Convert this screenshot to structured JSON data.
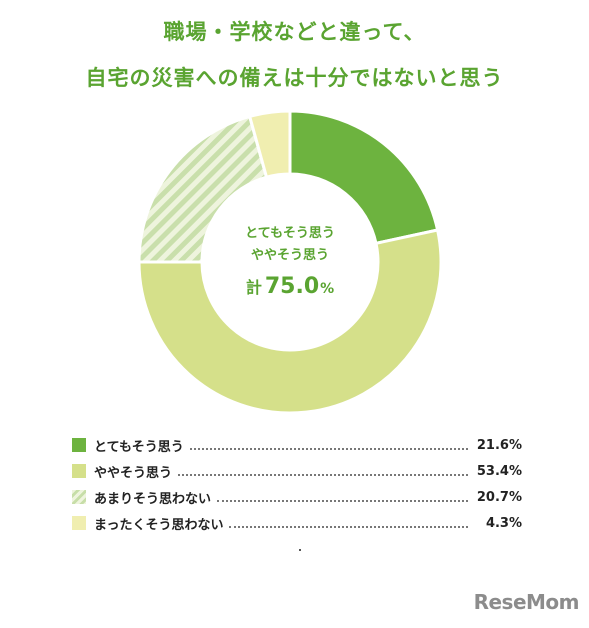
{
  "title_lines": [
    "職場・学校などと違って、",
    "自宅の災害への備えは十分ではないと思う"
  ],
  "center": {
    "line1": "とてもそう思う",
    "line2": "ややそう思う",
    "total_prefix": "計",
    "total_value": "75.0",
    "total_unit": "%"
  },
  "chart_data": {
    "type": "pie",
    "donut": true,
    "categories": [
      "とてもそう思う",
      "ややそう思う",
      "あまりそう思わない",
      "まったくそう思わない"
    ],
    "values": [
      21.6,
      53.4,
      20.7,
      4.3
    ],
    "value_labels": [
      "21.6%",
      "53.4%",
      "20.7%",
      "4.3%"
    ],
    "colors": [
      "#6db33f",
      "#d5e08a",
      "#d9e9c2",
      "#f0eeb0"
    ],
    "patterns": [
      "solid",
      "solid",
      "striped",
      "solid"
    ]
  },
  "logo": {
    "text": "ReseMom"
  }
}
